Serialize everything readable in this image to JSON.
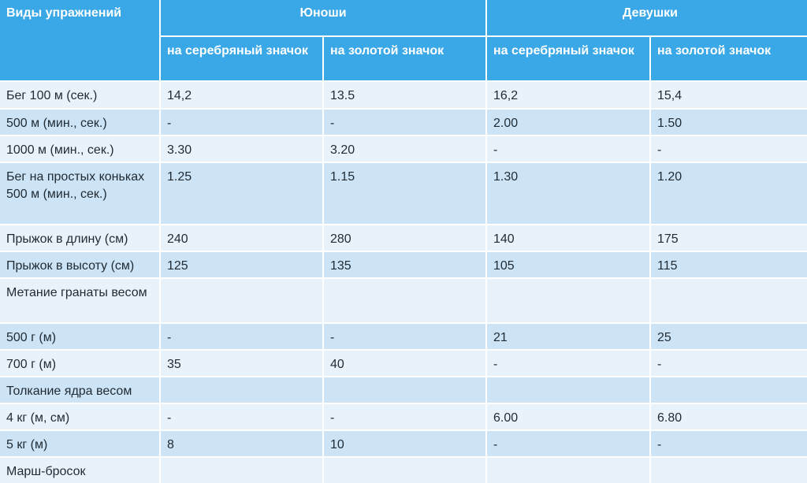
{
  "header": {
    "col1": "Виды упражнений",
    "boys": "Юноши",
    "girls": "Девушки",
    "silver": "на серебряный значок",
    "gold": "на золотой значок"
  },
  "rows": [
    {
      "name": "Бег 100 м (сек.)",
      "b_silver": "14,2",
      "b_gold": "13.5",
      "g_silver": "16,2",
      "g_gold": "15,4"
    },
    {
      "name": "500 м (мин., сек.)",
      "b_silver": "-",
      "b_gold": "-",
      "g_silver": "2.00",
      "g_gold": "1.50"
    },
    {
      "name": "1000 м (мин., сек.)",
      "b_silver": "3.30",
      "b_gold": "3.20",
      "g_silver": "-",
      "g_gold": "-"
    },
    {
      "name": "Бег на простых коньках 500 м (мин., сек.)",
      "b_silver": "1.25",
      "b_gold": "1.15",
      "g_silver": "1.30",
      "g_gold": "1.20"
    },
    {
      "name": "Прыжок в длину (см)",
      "b_silver": "240",
      "b_gold": "280",
      "g_silver": "140",
      "g_gold": "175"
    },
    {
      "name": "Прыжок в высоту (см)",
      "b_silver": "125",
      "b_gold": "135",
      "g_silver": "105",
      "g_gold": "115"
    },
    {
      "name": "Метание гранаты весом",
      "b_silver": "",
      "b_gold": "",
      "g_silver": "",
      "g_gold": ""
    },
    {
      "name": "500 г (м)",
      "b_silver": "-",
      "b_gold": "-",
      "g_silver": "21",
      "g_gold": "25"
    },
    {
      "name": "700 г (м)",
      "b_silver": "35",
      "b_gold": "40",
      "g_silver": "-",
      "g_gold": "-"
    },
    {
      "name": "Толкание ядра весом",
      "b_silver": "",
      "b_gold": "",
      "g_silver": "",
      "g_gold": ""
    },
    {
      "name": "4 кг (м, см)",
      "b_silver": "-",
      "b_gold": "-",
      "g_silver": "6.00",
      "g_gold": "6.80"
    },
    {
      "name": "5 кг (м)",
      "b_silver": "8",
      "b_gold": "10",
      "g_silver": "-",
      "g_gold": "-"
    },
    {
      "name": "Марш-бросок",
      "b_silver": "",
      "b_gold": "",
      "g_silver": "",
      "g_gold": ""
    }
  ]
}
